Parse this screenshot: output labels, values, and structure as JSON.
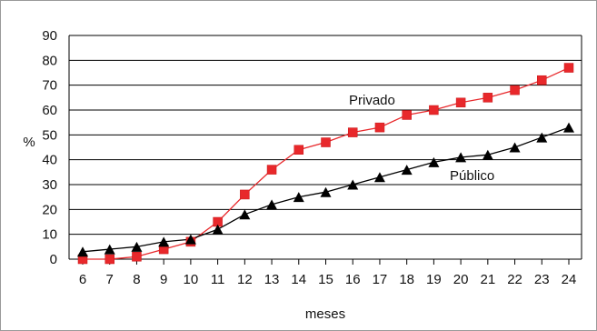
{
  "chart_data": {
    "type": "line",
    "title": "",
    "xlabel": "meses",
    "ylabel": "%",
    "x": [
      6,
      7,
      8,
      9,
      10,
      11,
      12,
      13,
      14,
      15,
      16,
      17,
      18,
      19,
      20,
      21,
      22,
      23,
      24
    ],
    "ylim": [
      0,
      90
    ],
    "yticks": [
      0,
      10,
      20,
      30,
      40,
      50,
      60,
      70,
      80,
      90
    ],
    "grid": true,
    "series": [
      {
        "name": "Privado",
        "marker": "square",
        "color": "#e8282b",
        "line_color": "#e8282b",
        "values": [
          0,
          0,
          1,
          4,
          7,
          15,
          26,
          36,
          44,
          47,
          51,
          53,
          58,
          60,
          63,
          65,
          68,
          72,
          77
        ]
      },
      {
        "name": "Público",
        "marker": "triangle",
        "color": "#000000",
        "line_color": "#000000",
        "values": [
          3,
          4,
          5,
          7,
          8,
          12,
          18,
          22,
          25,
          27,
          30,
          33,
          36,
          39,
          41,
          42,
          45,
          49,
          53
        ]
      }
    ]
  }
}
